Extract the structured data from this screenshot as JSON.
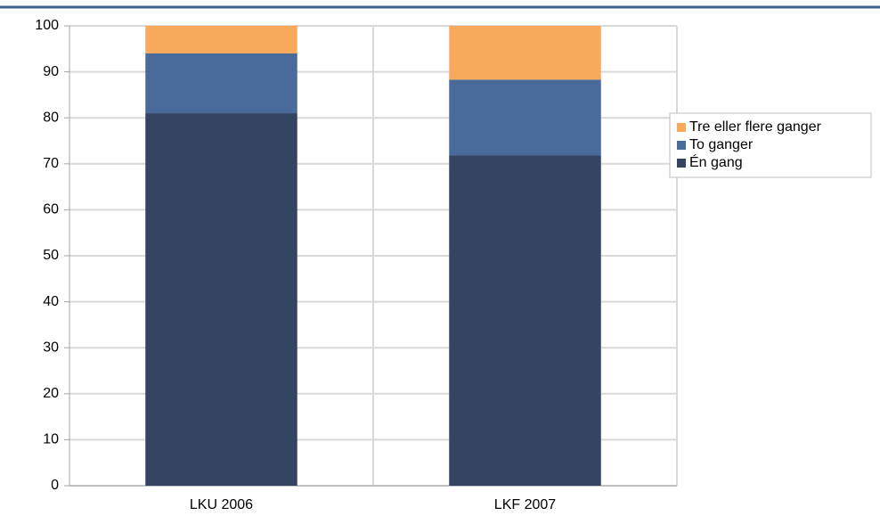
{
  "chart_data": {
    "type": "stacked_bar",
    "categories": [
      "LKU 2006",
      "LKF 2007"
    ],
    "series": [
      {
        "name": "Én gang",
        "color": "#344563",
        "values": [
          81,
          71.8
        ]
      },
      {
        "name": "To ganger",
        "color": "#4a6a9b",
        "values": [
          13,
          16.5
        ]
      },
      {
        "name": "Tre eller flere ganger",
        "color": "#f9a95b",
        "values": [
          6,
          11.7
        ]
      }
    ],
    "ylim": [
      0,
      100
    ],
    "yticks": [
      0,
      10,
      20,
      30,
      40,
      50,
      60,
      70,
      80,
      90,
      100
    ],
    "grid": true
  }
}
